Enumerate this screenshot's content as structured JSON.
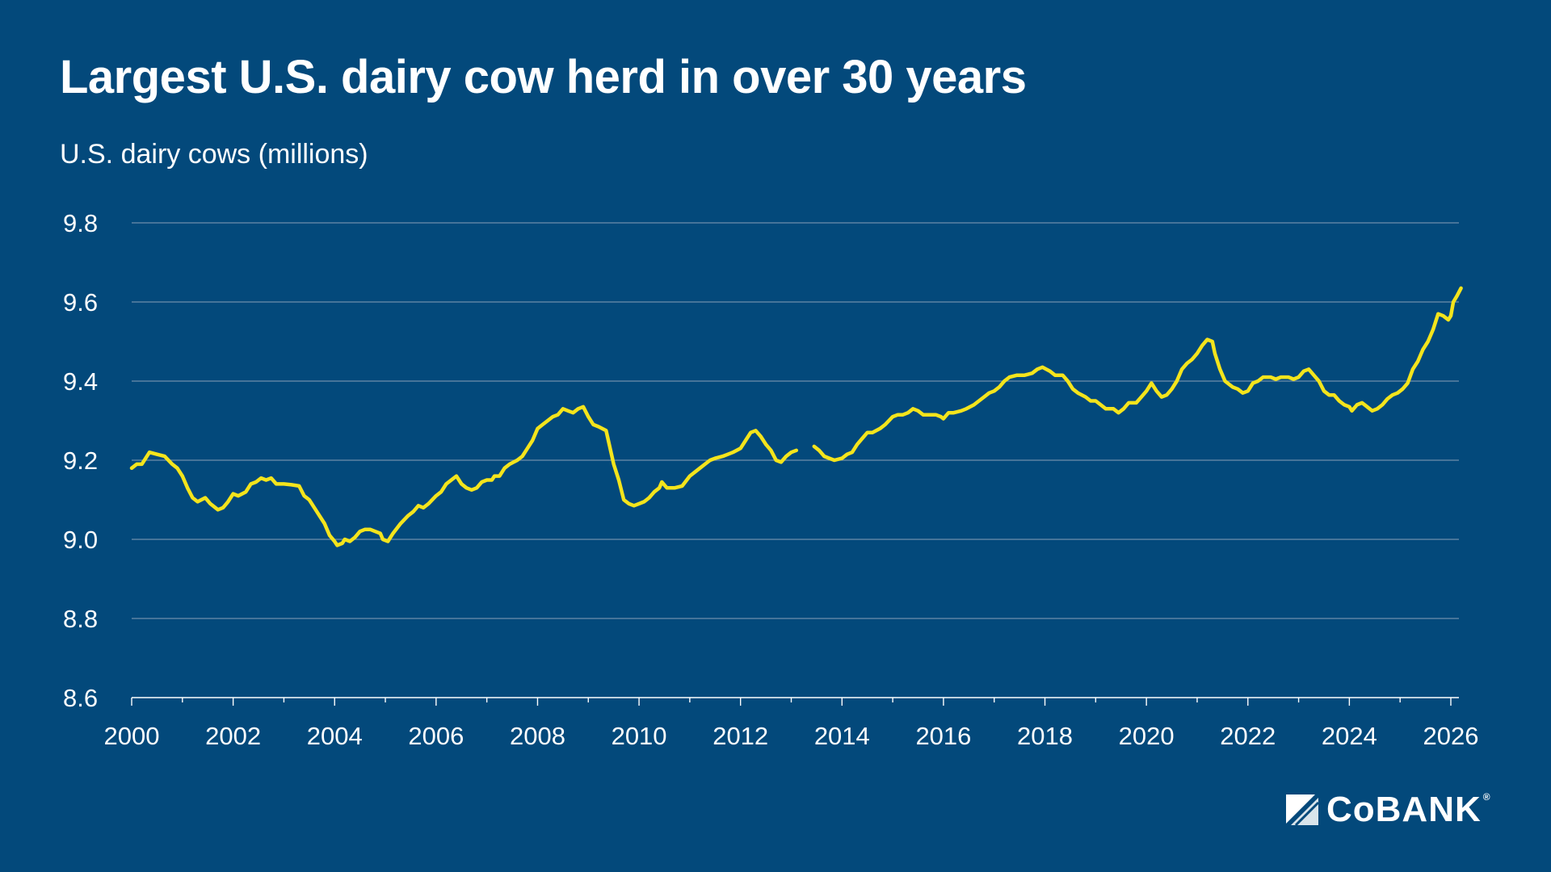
{
  "chart_data": {
    "type": "line",
    "title": "Largest U.S. dairy cow herd in over 30 years",
    "ylabel": "U.S. dairy cows (millions)",
    "xlabel": "",
    "xlim": [
      2000,
      2026.2
    ],
    "ylim": [
      8.6,
      9.8
    ],
    "y_ticks": [
      "8.6",
      "8.8",
      "9.0",
      "9.2",
      "9.4",
      "9.6",
      "9.8"
    ],
    "x_ticks": [
      "2000",
      "2002",
      "2004",
      "2006",
      "2008",
      "2010",
      "2012",
      "2014",
      "2016",
      "2018",
      "2020",
      "2022",
      "2024",
      "2026"
    ],
    "grid": true,
    "line_color": "#f4e41c",
    "background_color": "#03497b",
    "series": [
      {
        "segments": [
          [
            [
              2000.0,
              9.18
            ],
            [
              2000.1,
              9.19
            ],
            [
              2000.2,
              9.19
            ],
            [
              2000.35,
              9.22
            ],
            [
              2000.5,
              9.215
            ],
            [
              2000.65,
              9.21
            ],
            [
              2000.8,
              9.19
            ],
            [
              2000.9,
              9.18
            ],
            [
              2001.0,
              9.16
            ],
            [
              2001.1,
              9.13
            ],
            [
              2001.2,
              9.105
            ],
            [
              2001.3,
              9.095
            ],
            [
              2001.45,
              9.105
            ],
            [
              2001.55,
              9.09
            ],
            [
              2001.7,
              9.075
            ],
            [
              2001.8,
              9.08
            ],
            [
              2001.9,
              9.095
            ],
            [
              2002.0,
              9.115
            ],
            [
              2002.1,
              9.11
            ],
            [
              2002.25,
              9.12
            ],
            [
              2002.35,
              9.14
            ],
            [
              2002.45,
              9.145
            ],
            [
              2002.55,
              9.155
            ],
            [
              2002.65,
              9.15
            ],
            [
              2002.75,
              9.155
            ],
            [
              2002.85,
              9.14
            ],
            [
              2003.0,
              9.14
            ],
            [
              2003.15,
              9.138
            ],
            [
              2003.3,
              9.135
            ],
            [
              2003.4,
              9.11
            ],
            [
              2003.5,
              9.1
            ],
            [
              2003.6,
              9.08
            ],
            [
              2003.7,
              9.06
            ],
            [
              2003.8,
              9.04
            ],
            [
              2003.9,
              9.01
            ],
            [
              2004.0,
              8.995
            ],
            [
              2004.05,
              8.985
            ],
            [
              2004.15,
              8.99
            ],
            [
              2004.2,
              9.0
            ],
            [
              2004.3,
              8.995
            ],
            [
              2004.4,
              9.005
            ],
            [
              2004.5,
              9.02
            ],
            [
              2004.6,
              9.025
            ],
            [
              2004.7,
              9.025
            ],
            [
              2004.8,
              9.02
            ],
            [
              2004.9,
              9.015
            ],
            [
              2004.95,
              9.0
            ],
            [
              2005.05,
              8.995
            ],
            [
              2005.15,
              9.015
            ],
            [
              2005.3,
              9.04
            ],
            [
              2005.45,
              9.06
            ],
            [
              2005.55,
              9.07
            ],
            [
              2005.65,
              9.085
            ],
            [
              2005.75,
              9.08
            ],
            [
              2005.85,
              9.09
            ],
            [
              2006.0,
              9.11
            ],
            [
              2006.1,
              9.12
            ],
            [
              2006.2,
              9.14
            ],
            [
              2006.3,
              9.15
            ],
            [
              2006.4,
              9.16
            ],
            [
              2006.5,
              9.14
            ],
            [
              2006.6,
              9.13
            ],
            [
              2006.7,
              9.125
            ],
            [
              2006.8,
              9.13
            ],
            [
              2006.9,
              9.145
            ],
            [
              2007.0,
              9.15
            ],
            [
              2007.1,
              9.15
            ],
            [
              2007.15,
              9.16
            ],
            [
              2007.25,
              9.16
            ],
            [
              2007.35,
              9.18
            ],
            [
              2007.45,
              9.19
            ],
            [
              2007.6,
              9.2
            ],
            [
              2007.7,
              9.21
            ],
            [
              2007.8,
              9.23
            ],
            [
              2007.9,
              9.25
            ],
            [
              2008.0,
              9.28
            ],
            [
              2008.1,
              9.29
            ],
            [
              2008.2,
              9.3
            ],
            [
              2008.3,
              9.31
            ],
            [
              2008.4,
              9.315
            ],
            [
              2008.5,
              9.33
            ],
            [
              2008.6,
              9.325
            ],
            [
              2008.7,
              9.32
            ],
            [
              2008.8,
              9.33
            ],
            [
              2008.9,
              9.335
            ],
            [
              2009.0,
              9.31
            ],
            [
              2009.1,
              9.29
            ],
            [
              2009.2,
              9.285
            ],
            [
              2009.35,
              9.275
            ],
            [
              2009.5,
              9.19
            ],
            [
              2009.6,
              9.15
            ],
            [
              2009.7,
              9.1
            ],
            [
              2009.8,
              9.09
            ],
            [
              2009.9,
              9.085
            ],
            [
              2010.0,
              9.09
            ],
            [
              2010.1,
              9.095
            ],
            [
              2010.2,
              9.105
            ],
            [
              2010.3,
              9.12
            ],
            [
              2010.4,
              9.13
            ],
            [
              2010.45,
              9.145
            ],
            [
              2010.55,
              9.13
            ],
            [
              2010.7,
              9.13
            ],
            [
              2010.85,
              9.135
            ],
            [
              2011.0,
              9.16
            ],
            [
              2011.1,
              9.17
            ],
            [
              2011.2,
              9.18
            ],
            [
              2011.3,
              9.19
            ],
            [
              2011.4,
              9.2
            ],
            [
              2011.5,
              9.205
            ],
            [
              2011.65,
              9.21
            ],
            [
              2011.75,
              9.215
            ],
            [
              2011.85,
              9.22
            ],
            [
              2012.0,
              9.23
            ],
            [
              2012.1,
              9.25
            ],
            [
              2012.2,
              9.27
            ],
            [
              2012.3,
              9.275
            ],
            [
              2012.4,
              9.26
            ],
            [
              2012.5,
              9.24
            ],
            [
              2012.6,
              9.225
            ],
            [
              2012.7,
              9.2
            ],
            [
              2012.8,
              9.195
            ],
            [
              2012.9,
              9.21
            ],
            [
              2013.0,
              9.22
            ],
            [
              2013.1,
              9.225
            ]
          ],
          [
            [
              2013.45,
              9.235
            ],
            [
              2013.55,
              9.225
            ],
            [
              2013.65,
              9.21
            ],
            [
              2013.75,
              9.205
            ],
            [
              2013.85,
              9.2
            ],
            [
              2014.0,
              9.205
            ],
            [
              2014.1,
              9.215
            ],
            [
              2014.2,
              9.22
            ],
            [
              2014.3,
              9.24
            ],
            [
              2014.4,
              9.255
            ],
            [
              2014.5,
              9.27
            ],
            [
              2014.6,
              9.27
            ],
            [
              2014.75,
              9.28
            ],
            [
              2014.85,
              9.29
            ],
            [
              2015.0,
              9.31
            ],
            [
              2015.1,
              9.315
            ],
            [
              2015.2,
              9.315
            ],
            [
              2015.3,
              9.32
            ],
            [
              2015.4,
              9.33
            ],
            [
              2015.5,
              9.325
            ],
            [
              2015.6,
              9.315
            ],
            [
              2015.75,
              9.315
            ],
            [
              2015.85,
              9.315
            ],
            [
              2015.95,
              9.31
            ],
            [
              2016.0,
              9.305
            ],
            [
              2016.1,
              9.32
            ],
            [
              2016.2,
              9.32
            ],
            [
              2016.35,
              9.325
            ],
            [
              2016.45,
              9.33
            ],
            [
              2016.6,
              9.34
            ],
            [
              2016.7,
              9.35
            ],
            [
              2016.8,
              9.36
            ],
            [
              2016.9,
              9.37
            ],
            [
              2017.0,
              9.375
            ],
            [
              2017.1,
              9.385
            ],
            [
              2017.2,
              9.4
            ],
            [
              2017.3,
              9.41
            ],
            [
              2017.45,
              9.415
            ],
            [
              2017.6,
              9.415
            ],
            [
              2017.75,
              9.42
            ],
            [
              2017.85,
              9.43
            ],
            [
              2017.95,
              9.435
            ],
            [
              2018.1,
              9.425
            ],
            [
              2018.2,
              9.415
            ],
            [
              2018.35,
              9.415
            ],
            [
              2018.45,
              9.4
            ],
            [
              2018.55,
              9.38
            ],
            [
              2018.65,
              9.37
            ],
            [
              2018.8,
              9.36
            ],
            [
              2018.9,
              9.35
            ],
            [
              2019.0,
              9.35
            ],
            [
              2019.1,
              9.34
            ],
            [
              2019.2,
              9.33
            ],
            [
              2019.35,
              9.33
            ],
            [
              2019.45,
              9.32
            ],
            [
              2019.55,
              9.33
            ],
            [
              2019.65,
              9.345
            ],
            [
              2019.8,
              9.345
            ],
            [
              2019.9,
              9.36
            ],
            [
              2020.0,
              9.375
            ],
            [
              2020.1,
              9.395
            ],
            [
              2020.2,
              9.375
            ],
            [
              2020.3,
              9.36
            ],
            [
              2020.4,
              9.365
            ],
            [
              2020.5,
              9.38
            ],
            [
              2020.6,
              9.4
            ],
            [
              2020.7,
              9.43
            ],
            [
              2020.8,
              9.445
            ],
            [
              2020.9,
              9.455
            ],
            [
              2021.0,
              9.47
            ],
            [
              2021.1,
              9.49
            ],
            [
              2021.2,
              9.505
            ],
            [
              2021.3,
              9.5
            ],
            [
              2021.35,
              9.47
            ],
            [
              2021.45,
              9.43
            ],
            [
              2021.55,
              9.4
            ],
            [
              2021.7,
              9.385
            ],
            [
              2021.8,
              9.38
            ],
            [
              2021.9,
              9.37
            ],
            [
              2022.0,
              9.375
            ],
            [
              2022.1,
              9.395
            ],
            [
              2022.2,
              9.4
            ],
            [
              2022.3,
              9.41
            ],
            [
              2022.45,
              9.41
            ],
            [
              2022.55,
              9.405
            ],
            [
              2022.65,
              9.41
            ],
            [
              2022.8,
              9.41
            ],
            [
              2022.9,
              9.405
            ],
            [
              2023.0,
              9.41
            ],
            [
              2023.1,
              9.425
            ],
            [
              2023.2,
              9.43
            ],
            [
              2023.3,
              9.415
            ],
            [
              2023.4,
              9.4
            ],
            [
              2023.5,
              9.375
            ],
            [
              2023.6,
              9.365
            ],
            [
              2023.7,
              9.365
            ],
            [
              2023.8,
              9.35
            ],
            [
              2023.9,
              9.34
            ],
            [
              2024.0,
              9.335
            ],
            [
              2024.05,
              9.325
            ],
            [
              2024.15,
              9.34
            ],
            [
              2024.25,
              9.345
            ],
            [
              2024.35,
              9.335
            ],
            [
              2024.45,
              9.325
            ],
            [
              2024.55,
              9.33
            ],
            [
              2024.65,
              9.34
            ],
            [
              2024.75,
              9.355
            ],
            [
              2024.85,
              9.365
            ],
            [
              2024.95,
              9.37
            ],
            [
              2025.05,
              9.38
            ],
            [
              2025.15,
              9.395
            ],
            [
              2025.25,
              9.43
            ],
            [
              2025.35,
              9.45
            ],
            [
              2025.45,
              9.48
            ],
            [
              2025.55,
              9.5
            ],
            [
              2025.65,
              9.53
            ],
            [
              2025.75,
              9.57
            ],
            [
              2025.85,
              9.565
            ],
            [
              2025.95,
              9.555
            ],
            [
              2026.0,
              9.565
            ],
            [
              2026.05,
              9.6
            ],
            [
              2026.12,
              9.615
            ],
            [
              2026.2,
              9.635
            ]
          ]
        ]
      }
    ]
  },
  "brand": {
    "name": "CoBANK",
    "registered_mark": "®"
  }
}
